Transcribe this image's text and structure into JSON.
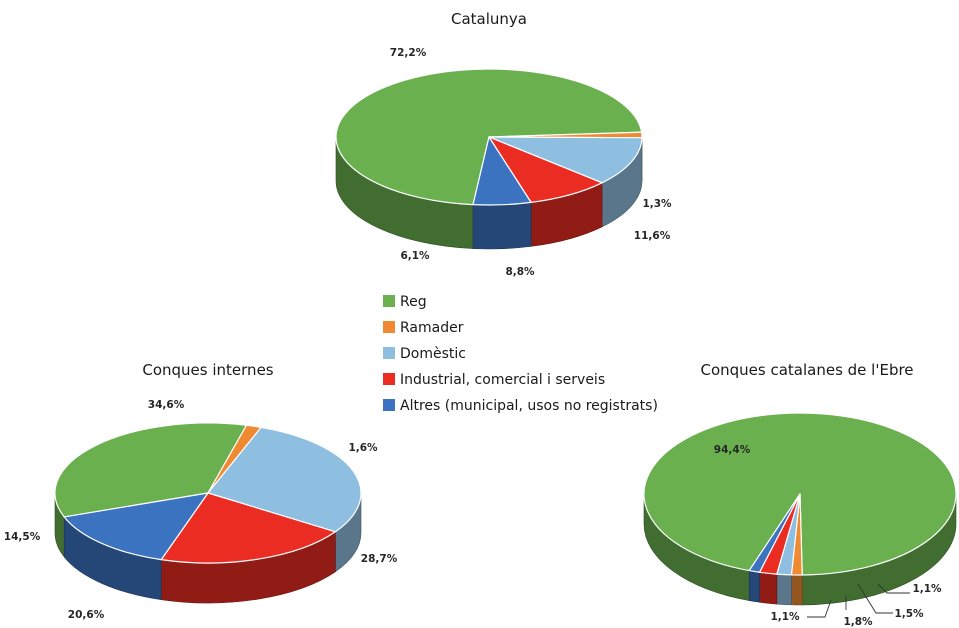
{
  "legend": {
    "items": [
      {
        "label": "Reg",
        "color": "#6ab04f"
      },
      {
        "label": "Ramader",
        "color": "#ef8a32"
      },
      {
        "label": "Domèstic",
        "color": "#8fbfe0"
      },
      {
        "label": "Industrial, comercial i serveis",
        "color": "#ea2c22"
      },
      {
        "label": "Altres (municipal, usos no registrats)",
        "color": "#3c73c0"
      }
    ]
  },
  "chart_data": [
    {
      "type": "pie",
      "title": "Catalunya",
      "categories": [
        "Reg",
        "Ramader",
        "Domèstic",
        "Industrial, comercial i serveis",
        "Altres (municipal, usos no registrats)"
      ],
      "values": [
        72.2,
        1.3,
        11.6,
        8.8,
        6.1
      ],
      "labels": [
        "72,2%",
        "1,3%",
        "11,6%",
        "8,8%",
        "6,1%"
      ],
      "style": "3d"
    },
    {
      "type": "pie",
      "title": "Conques internes",
      "categories": [
        "Reg",
        "Ramader",
        "Domèstic",
        "Industrial, comercial i serveis",
        "Altres (municipal, usos no registrats)"
      ],
      "values": [
        34.6,
        1.6,
        28.7,
        20.6,
        14.5
      ],
      "labels": [
        "34,6%",
        "1,6%",
        "28,7%",
        "20,6%",
        "14,5%"
      ],
      "style": "3d"
    },
    {
      "type": "pie",
      "title": "Conques catalanes de l'Ebre",
      "categories": [
        "Reg",
        "Ramader",
        "Domèstic",
        "Industrial, comercial i serveis",
        "Altres (municipal, usos no registrats)"
      ],
      "values": [
        94.4,
        1.1,
        1.5,
        1.8,
        1.1
      ],
      "labels": [
        "94,4%",
        "1,1%",
        "1,5%",
        "1,8%",
        "1,1%"
      ],
      "style": "3d"
    }
  ]
}
